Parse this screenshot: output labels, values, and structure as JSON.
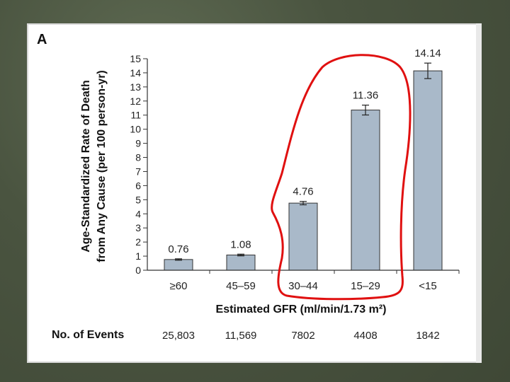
{
  "panel_label": "A",
  "chart_data": {
    "type": "bar",
    "categories": [
      "≥60",
      "45–59",
      "30–44",
      "15–29",
      "<15"
    ],
    "values": [
      0.76,
      1.08,
      4.76,
      11.36,
      14.14
    ],
    "value_labels": [
      "0.76",
      "1.08",
      "4.76",
      "11.36",
      "14.14"
    ],
    "error": [
      0.05,
      0.06,
      0.12,
      0.35,
      0.55
    ],
    "ylabel_line1": "Age-Standardized Rate of Death",
    "ylabel_line2": "from Any Cause (per 100 person-yr)",
    "xlabel": "Estimated GFR (ml/min/1.73 m²)",
    "ylim": [
      0,
      15
    ],
    "yticks": [
      0,
      1,
      2,
      3,
      4,
      5,
      6,
      7,
      8,
      9,
      10,
      11,
      12,
      13,
      14,
      15
    ],
    "bar_color": "#a9b9c9",
    "highlight_color": "#e01010",
    "events": {
      "title": "No. of Events",
      "values": [
        "25,803",
        "11,569",
        "7802",
        "4408",
        "1842"
      ]
    }
  }
}
